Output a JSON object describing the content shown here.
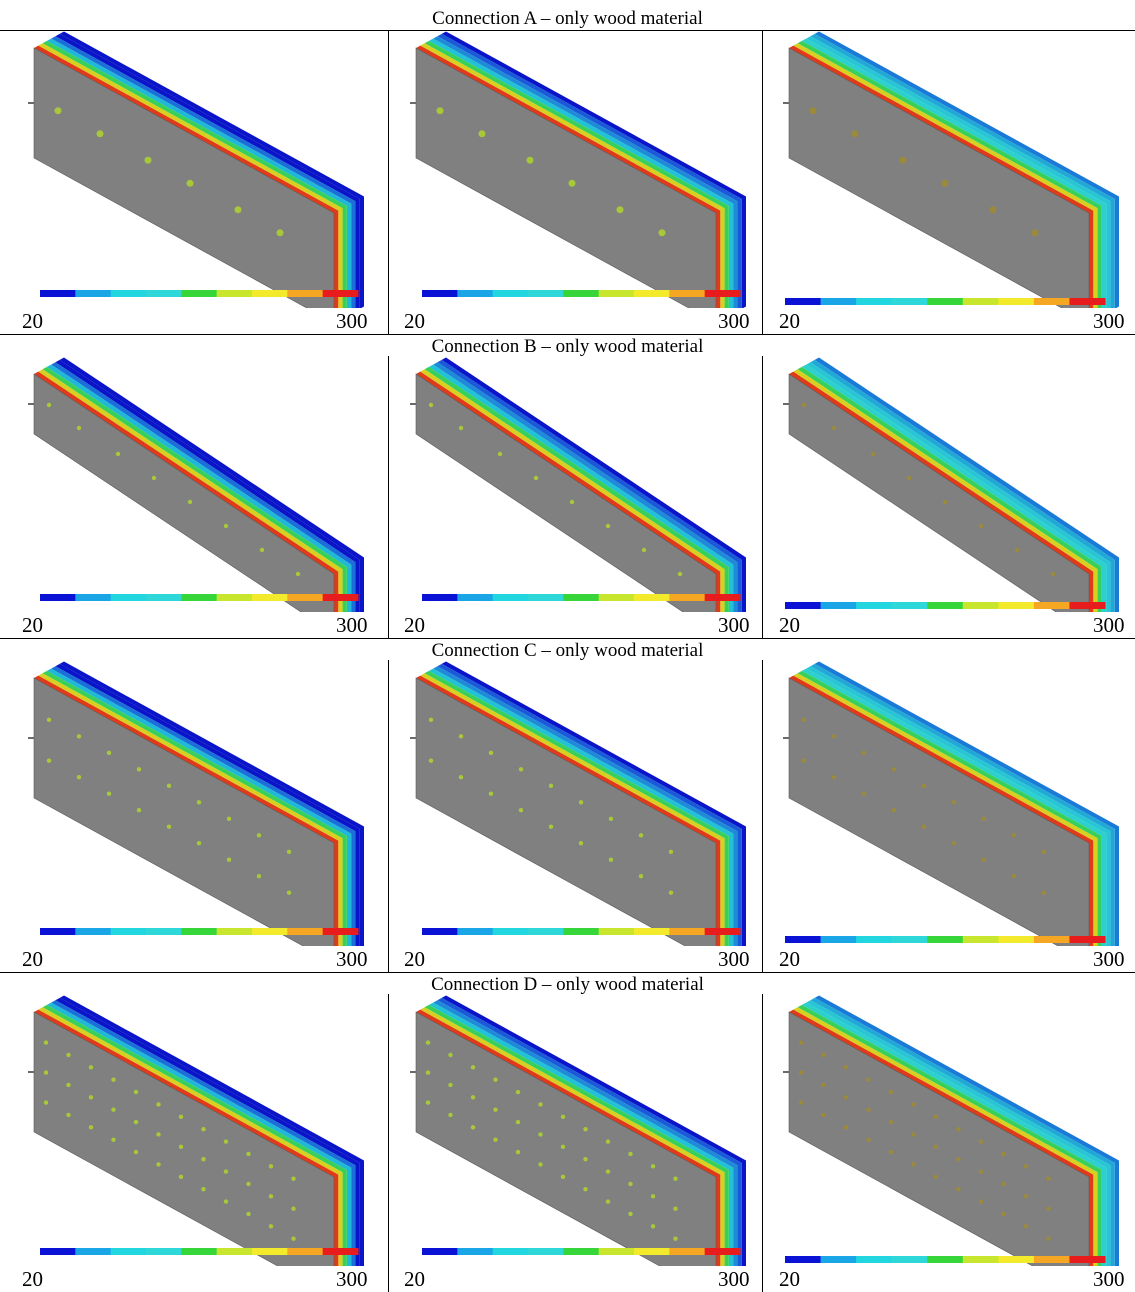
{
  "sections": [
    {
      "title": "Connection A – only wood material",
      "scale_min": "20",
      "scale_max": "300",
      "bolt_layout": "A"
    },
    {
      "title": "Connection B – only wood material",
      "scale_min": "20",
      "scale_max": "300",
      "bolt_layout": "B"
    },
    {
      "title": "Connection C – only wood material",
      "scale_min": "20",
      "scale_max": "300",
      "bolt_layout": "C"
    },
    {
      "title": "Connection D – only wood material",
      "scale_min": "20",
      "scale_max": "300",
      "bolt_layout": "D"
    }
  ],
  "colorbar": [
    "#0a12d6",
    "#1aa6e6",
    "#22d6e0",
    "#2ed8d8",
    "#36d63a",
    "#c8e62e",
    "#f2ea2a",
    "#f5a623",
    "#e81c1c"
  ],
  "columns": [
    {
      "stripes": [
        "#0a14c8",
        "#0a14c8",
        "#1a6fd8",
        "#1fb8d6",
        "#38d05a",
        "#d8d020",
        "#e03a1a"
      ]
    },
    {
      "stripes": [
        "#0a14c8",
        "#1a5ad8",
        "#1e8ad8",
        "#22c2d6",
        "#38d05a",
        "#d8d020",
        "#e03a1a"
      ]
    },
    {
      "stripes": [
        "#1a7ad8",
        "#22a8d6",
        "#28c6d4",
        "#2cd0cc",
        "#38d05a",
        "#d8d020",
        "#e03a1a"
      ]
    }
  ]
}
